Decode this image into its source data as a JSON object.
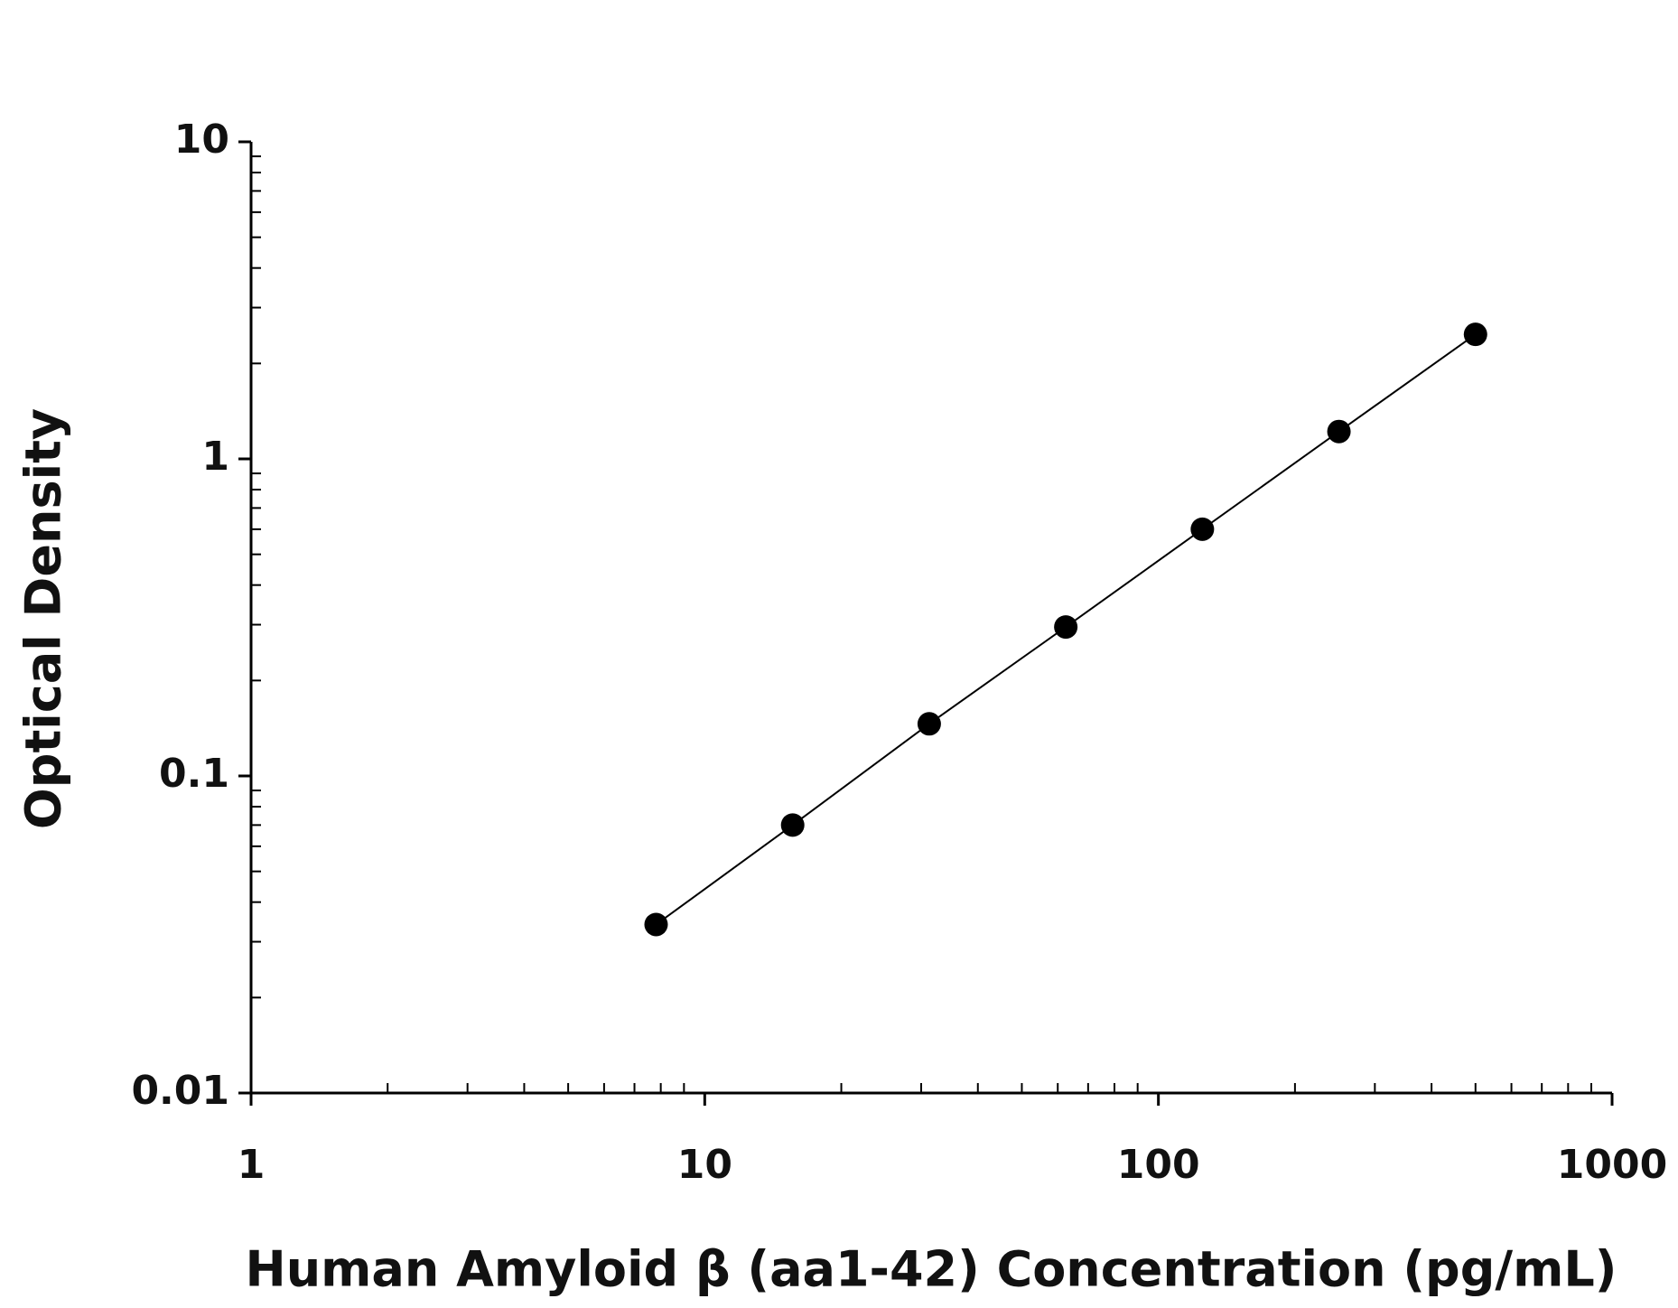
{
  "chart_data": {
    "type": "scatter",
    "x_label": "Human Amyloid β (aa1-42) Concentration (pg/mL)",
    "y_label": "Optical Density",
    "x": [
      7.8125,
      15.625,
      31.25,
      62.5,
      125,
      250,
      500
    ],
    "values": [
      0.034,
      0.07,
      0.146,
      0.295,
      0.6,
      1.22,
      2.47
    ],
    "color": "#000000",
    "xlim": [
      1,
      1000
    ],
    "ylim": [
      0.01,
      10
    ],
    "xticks": [
      1,
      10,
      100,
      1000
    ],
    "yticks": [
      0.01,
      0.1,
      1,
      10
    ],
    "xscale": "log",
    "yscale": "log",
    "fit_line": true,
    "grid": false
  }
}
